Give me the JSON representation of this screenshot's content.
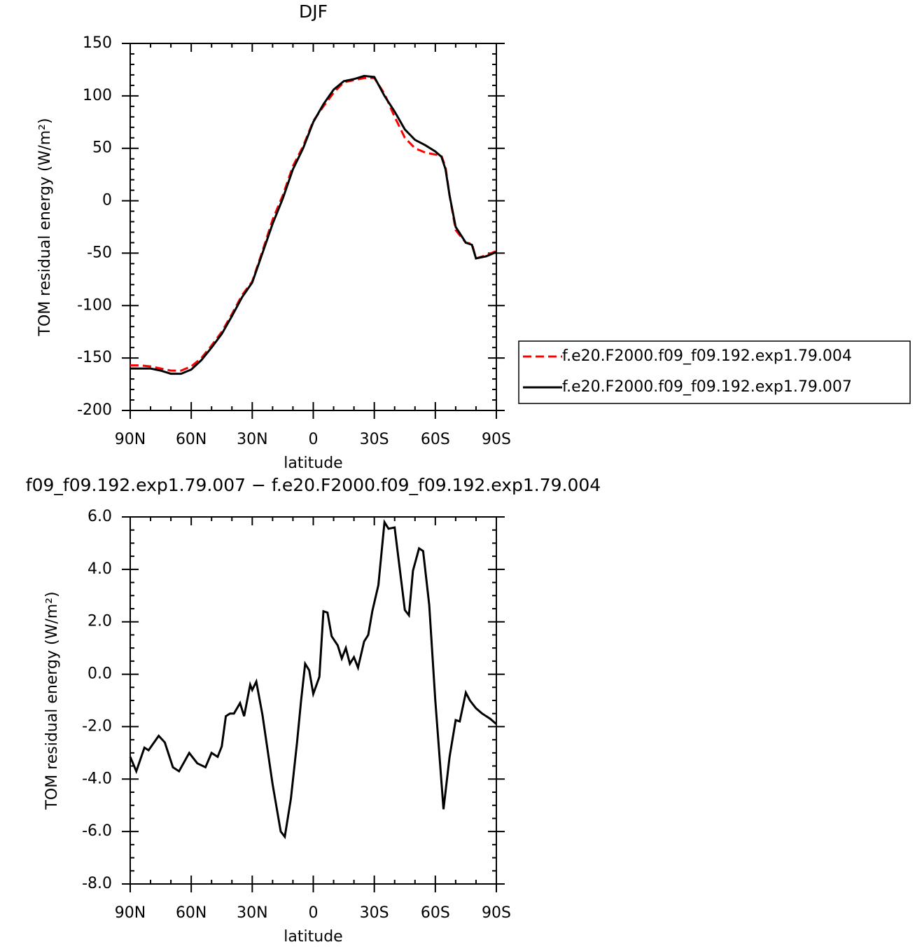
{
  "chart_data": [
    {
      "type": "line",
      "title": "DJF",
      "xlabel": "latitude",
      "ylabel": "TOM residual energy (W/m²)",
      "x": [
        90,
        85,
        80,
        75,
        70,
        65,
        60,
        55,
        50,
        45,
        40,
        35,
        30,
        25,
        20,
        15,
        10,
        5,
        0,
        -5,
        -10,
        -15,
        -20,
        -25,
        -30,
        -35,
        -40,
        -45,
        -50,
        -55,
        -60,
        -63,
        -65,
        -67,
        -70,
        -75,
        -78,
        -80,
        -85,
        -90
      ],
      "series": [
        {
          "name": "f.e20.F2000.f09_f09.192.exp1.79.004",
          "color": "#ff0000",
          "linestyle": "dashed",
          "values": [
            -157,
            -157,
            -158,
            -160,
            -162,
            -162,
            -158,
            -150,
            -138,
            -125,
            -108,
            -90,
            -77,
            -48,
            -18,
            5,
            33,
            52,
            76,
            90,
            103,
            113,
            115,
            117,
            117,
            102,
            80,
            60,
            50,
            46,
            44,
            43,
            32,
            5,
            -28,
            -40,
            -41,
            -55,
            -52,
            -48
          ]
        },
        {
          "name": "f.e20.F2000.f09_f09.192.exp1.79.007",
          "color": "#000000",
          "linestyle": "solid",
          "values": [
            -160,
            -160,
            -160,
            -162,
            -165,
            -165,
            -161,
            -152,
            -140,
            -127,
            -110,
            -92,
            -78,
            -50,
            -22,
            2,
            30,
            50,
            75,
            92,
            106,
            114,
            116,
            119,
            118,
            100,
            85,
            68,
            58,
            53,
            47,
            42,
            30,
            5,
            -25,
            -40,
            -42,
            -55,
            -53,
            -49
          ]
        }
      ],
      "xlim": [
        90,
        -90
      ],
      "xticks": [
        {
          "value": 90,
          "label": "90N"
        },
        {
          "value": 60,
          "label": "60N"
        },
        {
          "value": 30,
          "label": "30N"
        },
        0,
        {
          "value": -30,
          "label": "30S"
        },
        {
          "value": -60,
          "label": "60S"
        },
        {
          "value": -90,
          "label": "90S"
        }
      ],
      "ylim": [
        -200,
        150
      ],
      "yticks": [
        -200,
        -150,
        -100,
        -50,
        0,
        50,
        100,
        150
      ],
      "legend": "right"
    },
    {
      "type": "line",
      "title": "f09_f09.192.exp1.79.007 − f.e20.F2000.f09_f09.192.exp1.79.004",
      "xlabel": "latitude",
      "ylabel": "TOM residual energy (W/m²)",
      "x": [
        90,
        87,
        83,
        81,
        76,
        73,
        69,
        66,
        61,
        57,
        53,
        50,
        47,
        45,
        43,
        41,
        39,
        36,
        34,
        31,
        30,
        28,
        25,
        20,
        16,
        14,
        11,
        8,
        6,
        4,
        2,
        0,
        -3,
        -5,
        -7,
        -9,
        -12,
        -14,
        -16,
        -18,
        -20,
        -22,
        -25,
        -27,
        -29,
        -32,
        -35,
        -37,
        -40,
        -42,
        -45,
        -47,
        -49,
        -52,
        -54,
        -57,
        -60,
        -64,
        -67,
        -70,
        -72,
        -75,
        -77,
        -80,
        -83,
        -87,
        -90
      ],
      "color": "#000000",
      "values": [
        -3.15,
        -3.7,
        -2.8,
        -2.9,
        -2.35,
        -2.6,
        -3.55,
        -3.7,
        -3.0,
        -3.4,
        -3.55,
        -3.0,
        -3.15,
        -2.75,
        -1.6,
        -1.5,
        -1.5,
        -1.1,
        -1.6,
        -0.4,
        -0.6,
        -0.28,
        -1.55,
        -4.2,
        -6.0,
        -6.2,
        -4.75,
        -2.6,
        -1.0,
        0.4,
        0.15,
        -0.75,
        -0.1,
        2.4,
        2.35,
        1.45,
        1.1,
        0.6,
        1.0,
        0.4,
        0.65,
        0.25,
        1.25,
        1.5,
        2.4,
        3.4,
        5.8,
        5.55,
        5.6,
        4.35,
        2.45,
        2.25,
        3.95,
        4.8,
        4.7,
        2.65,
        -1.0,
        -5.15,
        -3.15,
        -1.75,
        -1.8,
        -0.7,
        -1.0,
        -1.3,
        -1.5,
        -1.7,
        -1.9
      ],
      "xlim": [
        90,
        -90
      ],
      "xticks": [
        {
          "value": 90,
          "label": "90N"
        },
        {
          "value": 60,
          "label": "60N"
        },
        {
          "value": 30,
          "label": "30N"
        },
        0,
        {
          "value": -30,
          "label": "30S"
        },
        {
          "value": -60,
          "label": "60S"
        },
        {
          "value": -90,
          "label": "90S"
        }
      ],
      "ylim": [
        -8,
        6
      ],
      "yticks": [
        {
          "value": -8,
          "label": "-8.0"
        },
        {
          "value": -6,
          "label": "-6.0"
        },
        {
          "value": -4,
          "label": "-4.0"
        },
        {
          "value": -2,
          "label": "-2.0"
        },
        {
          "value": 0,
          "label": "0.0"
        },
        {
          "value": 2,
          "label": "2.0"
        },
        {
          "value": 4,
          "label": "4.0"
        },
        {
          "value": 6,
          "label": "6.0"
        }
      ]
    }
  ]
}
